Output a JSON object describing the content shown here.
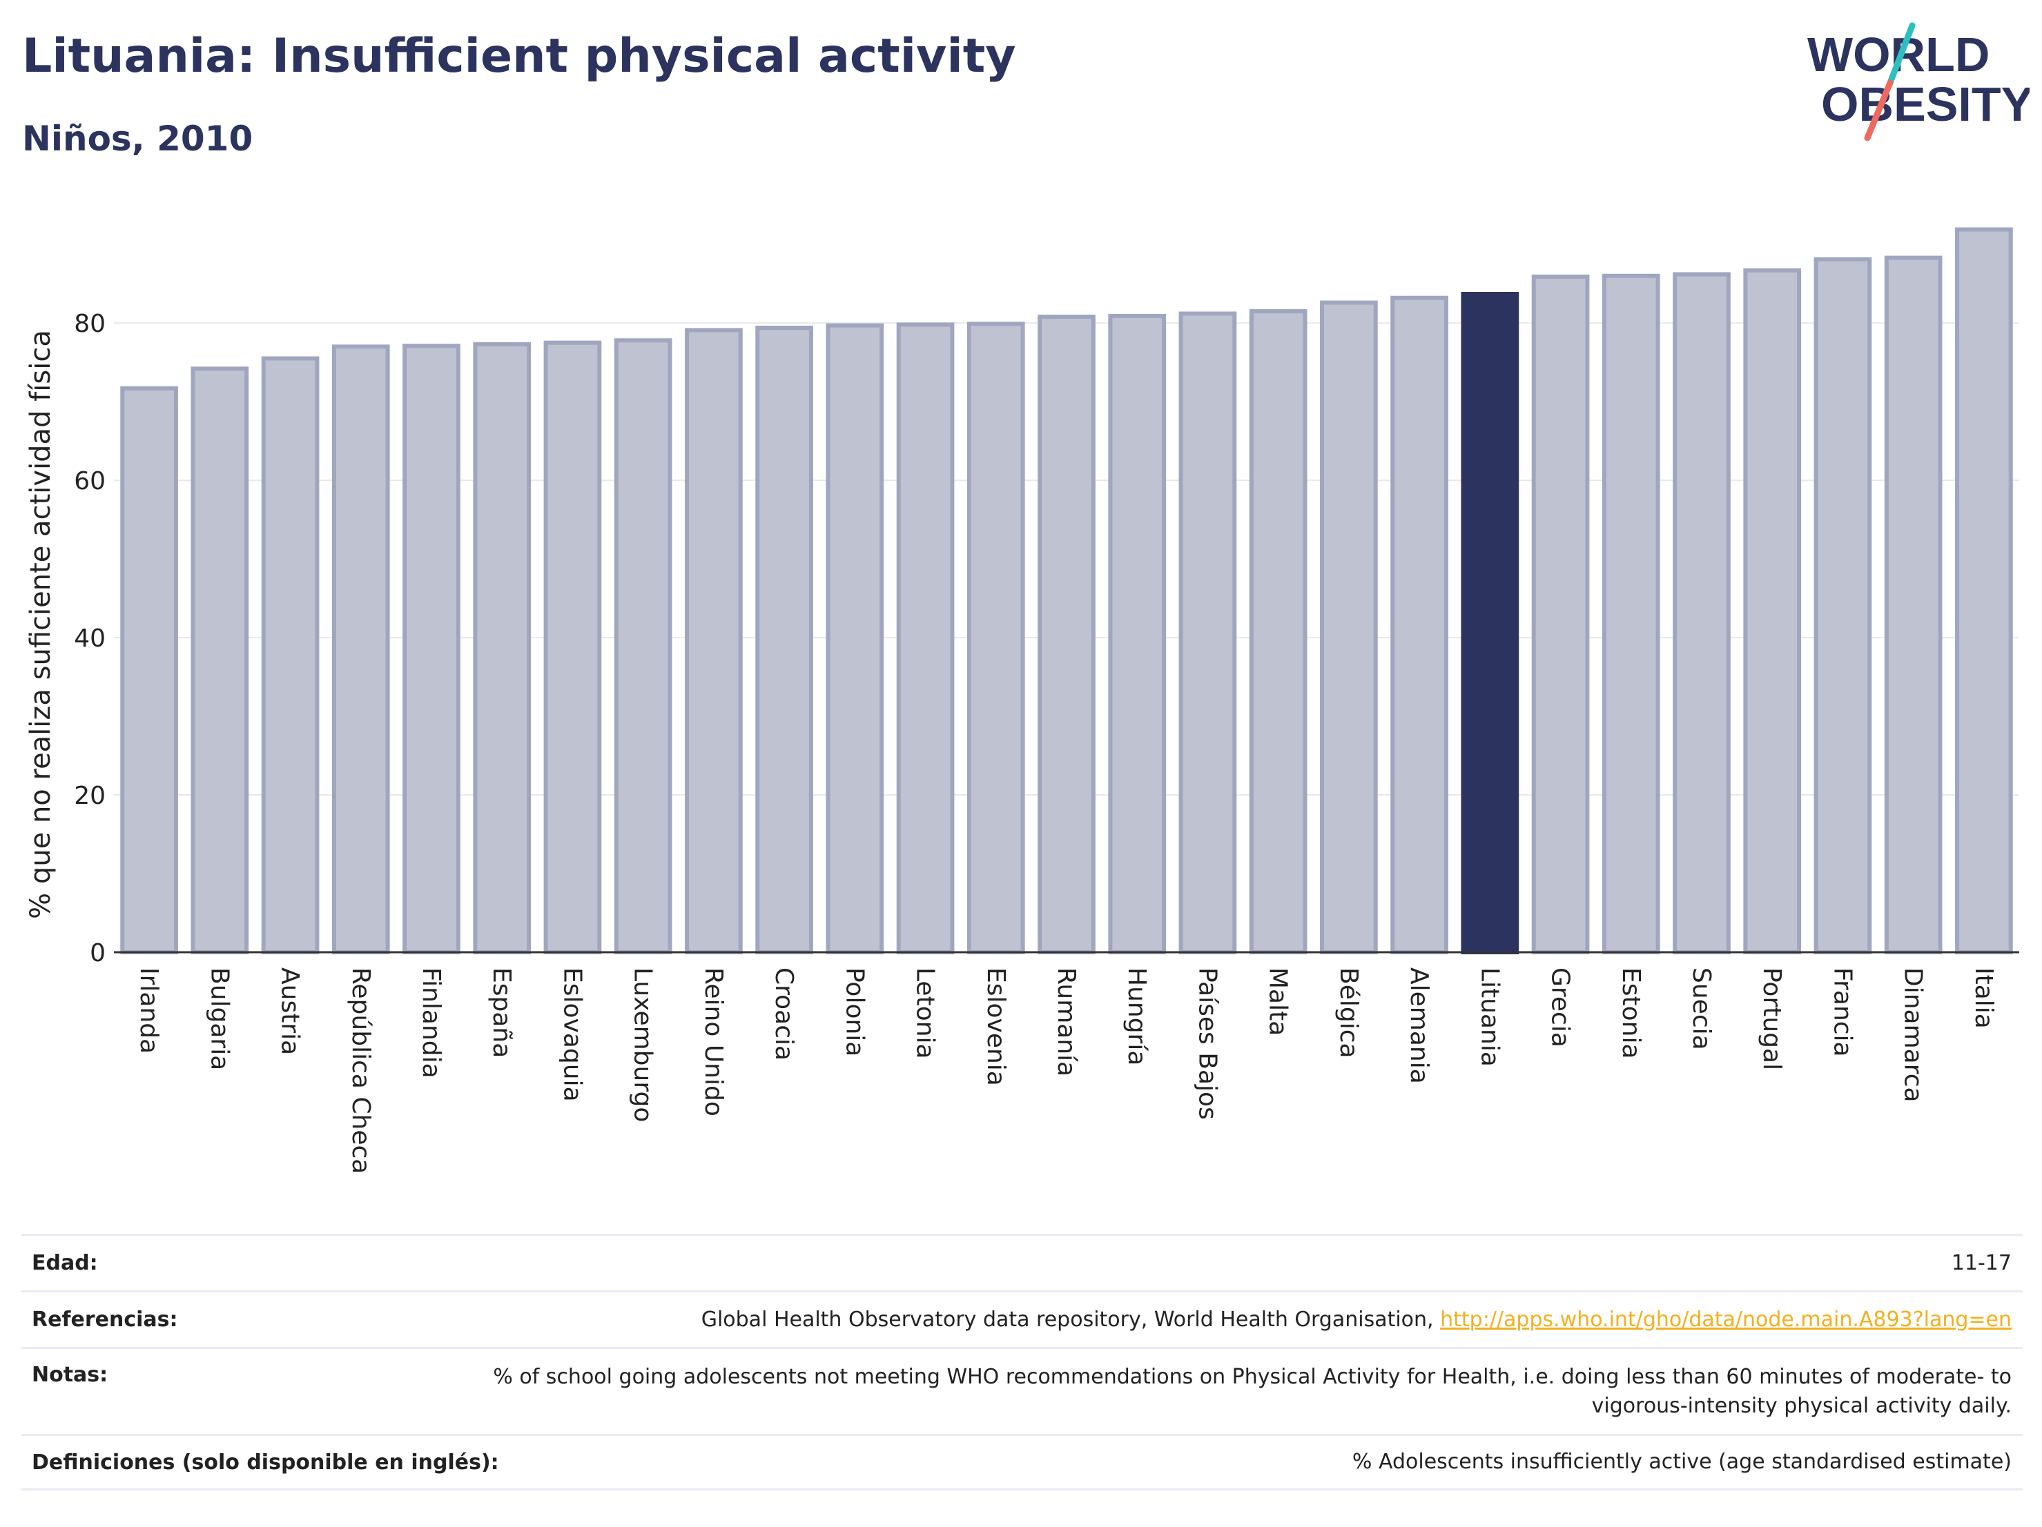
{
  "header": {
    "title": "Lituania: Insufficient physical activity",
    "subtitle": "Niños, 2010"
  },
  "logo": {
    "line1": "WORLD",
    "line2": "OBESITY"
  },
  "colors": {
    "highlight": "#2b335e",
    "bar_fill": "#bfc2d0",
    "bar_stroke": "#a0a6bf",
    "title": "#2b335e",
    "logo_teal": "#2ebfbf",
    "logo_coral": "#ee6a5f",
    "link": "#f2b01e"
  },
  "chart_data": {
    "type": "bar",
    "ylabel": "% que no realiza suficiente actividad física",
    "xlabel": "",
    "ylim": [
      0,
      93
    ],
    "yticks": [
      0,
      20,
      40,
      60,
      80
    ],
    "grid": true,
    "highlight": "Lituania",
    "categories": [
      "Irlanda",
      "Bulgaria",
      "Austria",
      "República Checa",
      "Finlandia",
      "España",
      "Eslovaquia",
      "Luxemburgo",
      "Reino Unido",
      "Croacia",
      "Polonia",
      "Letonia",
      "Eslovenia",
      "Rumanía",
      "Hungría",
      "Países Bajos",
      "Malta",
      "Bélgica",
      "Alemania",
      "Lituania",
      "Grecia",
      "Estonia",
      "Suecia",
      "Portugal",
      "Francia",
      "Dinamarca",
      "Italia"
    ],
    "values": [
      71.7,
      74.2,
      75.5,
      77.0,
      77.1,
      77.3,
      77.5,
      77.8,
      79.1,
      79.4,
      79.7,
      79.8,
      79.9,
      80.8,
      80.9,
      81.2,
      81.5,
      82.6,
      83.2,
      83.7,
      85.9,
      86.0,
      86.2,
      86.7,
      88.1,
      88.3,
      91.9
    ]
  },
  "info": {
    "edad_label": "Edad:",
    "edad_value": "11-17",
    "referencias_label": "Referencias:",
    "referencias_text": "Global Health Observatory data repository, World Health Organisation,",
    "referencias_link": "http://apps.who.int/gho/data/node.main.A893?lang=en",
    "notas_label": "Notas:",
    "notas_value": "% of school going adolescents not meeting WHO recommendations on Physical Activity for Health, i.e. doing less than 60 minutes of moderate- to vigorous-intensity physical activity daily.",
    "definiciones_label": "Definiciones (solo disponible en inglés):",
    "definiciones_value": "% Adolescents insufficiently active (age standardised estimate)"
  }
}
